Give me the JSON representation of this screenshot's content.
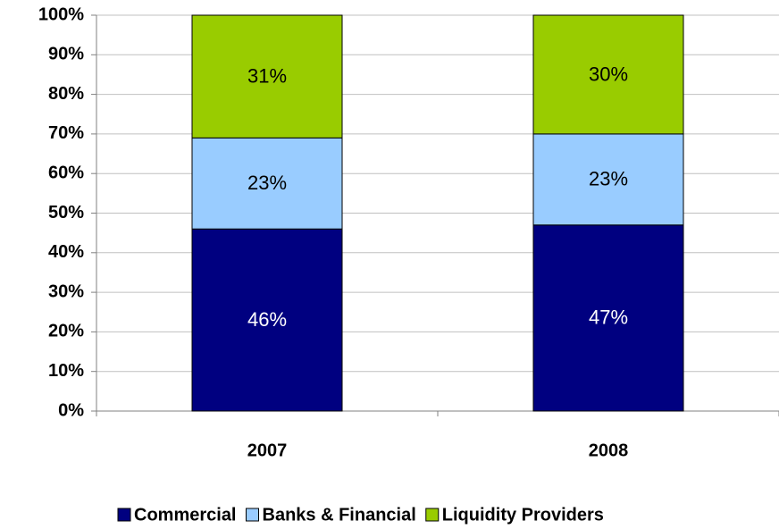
{
  "chart_data": {
    "type": "stacked_bar",
    "categories": [
      "2007",
      "2008"
    ],
    "series": [
      {
        "name": "Commercial",
        "color": "#000080",
        "values": [
          46,
          47
        ],
        "value_labels": [
          "46%",
          "47%"
        ]
      },
      {
        "name": "Banks & Financial",
        "color": "#99ccff",
        "values": [
          23,
          23
        ],
        "value_labels": [
          "23%",
          "23%"
        ]
      },
      {
        "name": "Liquidity Providers",
        "color": "#99cc00",
        "values": [
          31,
          30
        ],
        "value_labels": [
          "31%",
          "30%"
        ]
      }
    ],
    "ylim": [
      0,
      100
    ],
    "yticks": [
      {
        "value": 0,
        "label": "0%"
      },
      {
        "value": 10,
        "label": "10%"
      },
      {
        "value": 20,
        "label": "20%"
      },
      {
        "value": 30,
        "label": "30%"
      },
      {
        "value": 40,
        "label": "40%"
      },
      {
        "value": 50,
        "label": "50%"
      },
      {
        "value": 60,
        "label": "60%"
      },
      {
        "value": 70,
        "label": "70%"
      },
      {
        "value": 80,
        "label": "80%"
      },
      {
        "value": 90,
        "label": "90%"
      },
      {
        "value": 100,
        "label": "100%"
      }
    ],
    "grid": true,
    "legend": "bottom"
  }
}
